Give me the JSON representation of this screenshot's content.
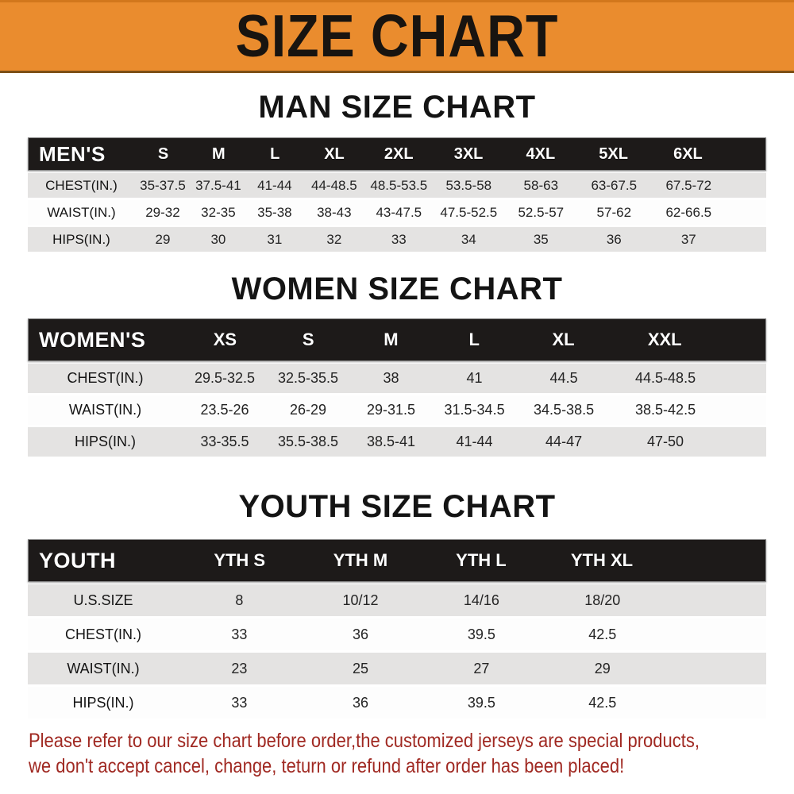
{
  "banner": {
    "title": "SIZE CHART"
  },
  "colors": {
    "banner_orange": "#EA8C2E",
    "header_black": "#1D1A19",
    "row_gray": "#E4E3E2",
    "row_white": "#FDFDFD",
    "note_red": "#A02922"
  },
  "sections": {
    "men": {
      "title": "MAN SIZE CHART",
      "corner": "MEN'S",
      "sizes": [
        "S",
        "M",
        "L",
        "XL",
        "2XL",
        "3XL",
        "4XL",
        "5XL",
        "6XL"
      ],
      "rows": [
        {
          "label": "CHEST(IN.)",
          "values": [
            "35-37.5",
            "37.5-41",
            "41-44",
            "44-48.5",
            "48.5-53.5",
            "53.5-58",
            "58-63",
            "63-67.5",
            "67.5-72"
          ]
        },
        {
          "label": "WAIST(IN.)",
          "values": [
            "29-32",
            "32-35",
            "35-38",
            "38-43",
            "43-47.5",
            "47.5-52.5",
            "52.5-57",
            "57-62",
            "62-66.5"
          ]
        },
        {
          "label": "HIPS(IN.)",
          "values": [
            "29",
            "30",
            "31",
            "32",
            "33",
            "34",
            "35",
            "36",
            "37"
          ]
        }
      ]
    },
    "women": {
      "title": "WOMEN SIZE CHART",
      "corner": "WOMEN'S",
      "sizes": [
        "XS",
        "S",
        "M",
        "L",
        "XL",
        "XXL"
      ],
      "rows": [
        {
          "label": "CHEST(IN.)",
          "values": [
            "29.5-32.5",
            "32.5-35.5",
            "38",
            "41",
            "44.5",
            "44.5-48.5"
          ]
        },
        {
          "label": "WAIST(IN.)",
          "values": [
            "23.5-26",
            "26-29",
            "29-31.5",
            "31.5-34.5",
            "34.5-38.5",
            "38.5-42.5"
          ]
        },
        {
          "label": "HIPS(IN.)",
          "values": [
            "33-35.5",
            "35.5-38.5",
            "38.5-41",
            "41-44",
            "44-47",
            "47-50"
          ]
        }
      ]
    },
    "youth": {
      "title": "YOUTH SIZE CHART",
      "corner": "YOUTH",
      "sizes": [
        "YTH S",
        "YTH M",
        "YTH L",
        "YTH XL"
      ],
      "rows": [
        {
          "label": "U.S.SIZE",
          "values": [
            "8",
            "10/12",
            "14/16",
            "18/20"
          ]
        },
        {
          "label": "CHEST(IN.)",
          "values": [
            "33",
            "36",
            "39.5",
            "42.5"
          ]
        },
        {
          "label": "WAIST(IN.)",
          "values": [
            "23",
            "25",
            "27",
            "29"
          ]
        },
        {
          "label": "HIPS(IN.)",
          "values": [
            "33",
            "36",
            "39.5",
            "42.5"
          ]
        }
      ]
    }
  },
  "footer": {
    "line1": "Please refer to our size chart before order,the customized jerseys are special products,",
    "line2": "we don't accept cancel, change, teturn or refund after order has been placed!"
  }
}
